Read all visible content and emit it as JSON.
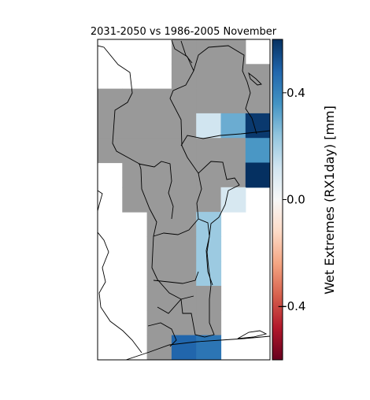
{
  "title": "2031-2050 vs 1986-2005 November",
  "colorbar": {
    "label": "Wet Extremes (RX1day) [mm]",
    "ticks": [
      "0.4",
      "0.0",
      "−0.4"
    ],
    "tick_values": [
      0.4,
      0.0,
      -0.4
    ],
    "range": [
      -0.6,
      0.6
    ],
    "colormap": "RdBu",
    "stops": [
      "#67001f",
      "#b2182b",
      "#d6604d",
      "#f4a582",
      "#fddbc7",
      "#f7f7f7",
      "#d1e5f0",
      "#92c5de",
      "#4393c3",
      "#2166ac",
      "#053061"
    ]
  },
  "colors": {
    "no_data_land": "#999999",
    "ocean": "#ffffff",
    "border": "#000000"
  },
  "chart_data": {
    "type": "heatmap",
    "title": "2031-2050 vs 1986-2005 November",
    "colorbar_label": "Wet Extremes (RX1day) [mm]",
    "vmin": -0.6,
    "vmax": 0.6,
    "grid_note": "rows north to south, columns west to east; null = masked (grey), 'ocean' = white",
    "cells": [
      [
        "ocean",
        "ocean",
        "ocean",
        null,
        null,
        null,
        "ocean"
      ],
      [
        "ocean",
        "ocean",
        "ocean",
        null,
        null,
        null,
        null
      ],
      [
        null,
        null,
        null,
        null,
        null,
        null,
        null
      ],
      [
        null,
        null,
        null,
        null,
        0.12,
        0.3,
        0.58
      ],
      [
        null,
        null,
        null,
        null,
        null,
        null,
        0.35
      ],
      [
        "ocean",
        null,
        null,
        null,
        null,
        null,
        0.6
      ],
      [
        "ocean",
        null,
        null,
        null,
        null,
        0.1,
        "ocean"
      ],
      [
        "ocean",
        "ocean",
        null,
        null,
        0.22,
        "ocean",
        "ocean"
      ],
      [
        "ocean",
        "ocean",
        null,
        null,
        0.22,
        "ocean",
        "ocean"
      ],
      [
        "ocean",
        "ocean",
        null,
        null,
        0.22,
        "ocean",
        "ocean"
      ],
      [
        "ocean",
        "ocean",
        null,
        null,
        null,
        "ocean",
        "ocean"
      ],
      [
        "ocean",
        "ocean",
        null,
        null,
        null,
        "ocean",
        "ocean"
      ],
      [
        "ocean",
        "ocean",
        null,
        0.48,
        0.44,
        "ocean",
        "ocean"
      ]
    ]
  }
}
